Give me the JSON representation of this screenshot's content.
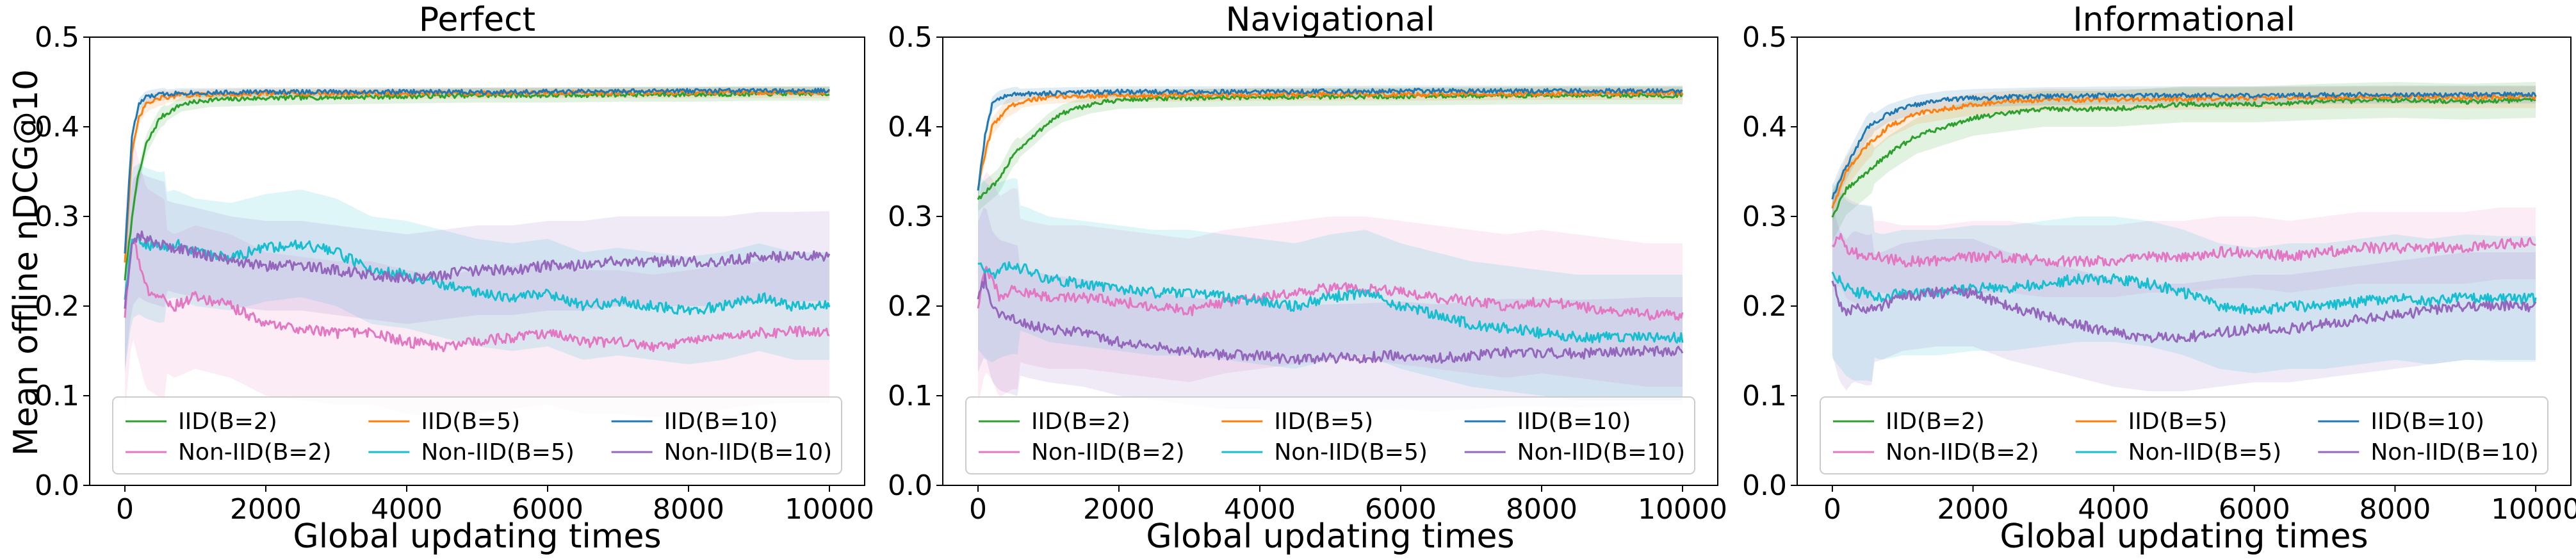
{
  "figure": {
    "ylabel": "Mean offline nDCG@10",
    "xlabel": "Global updating times"
  },
  "chart_data": [
    {
      "type": "line",
      "title": "Perfect",
      "xlabel": "Global updating times",
      "ylabel": "Mean offline nDCG@10",
      "xlim": [
        -500,
        10500
      ],
      "ylim": [
        0.0,
        0.5
      ],
      "xticks": [
        0,
        2000,
        4000,
        6000,
        8000,
        10000
      ],
      "yticks": [
        0.0,
        0.1,
        0.2,
        0.3,
        0.4,
        0.5
      ],
      "legend": {
        "position": "lower-center",
        "columns": 3
      },
      "series": [
        {
          "name": "IID(B=2)",
          "color": "#2ca02c",
          "x": [
            0,
            150,
            300,
            500,
            800,
            1200,
            2000,
            3000,
            4000,
            5000,
            6000,
            7000,
            8000,
            9000,
            10000
          ],
          "y": [
            0.23,
            0.33,
            0.38,
            0.41,
            0.425,
            0.43,
            0.432,
            0.433,
            0.434,
            0.435,
            0.435,
            0.436,
            0.436,
            0.437,
            0.437
          ],
          "band": 0.008
        },
        {
          "name": "IID(B=5)",
          "color": "#ff7f0e",
          "x": [
            0,
            100,
            200,
            300,
            500,
            800,
            1200,
            2000,
            4000,
            6000,
            8000,
            10000
          ],
          "y": [
            0.25,
            0.37,
            0.41,
            0.425,
            0.432,
            0.435,
            0.436,
            0.437,
            0.437,
            0.438,
            0.438,
            0.438
          ],
          "band": 0.006
        },
        {
          "name": "IID(B=10)",
          "color": "#1f77b4",
          "x": [
            0,
            100,
            200,
            300,
            500,
            800,
            1200,
            2000,
            4000,
            6000,
            8000,
            10000
          ],
          "y": [
            0.26,
            0.39,
            0.425,
            0.433,
            0.436,
            0.438,
            0.438,
            0.439,
            0.439,
            0.439,
            0.44,
            0.44
          ],
          "band": 0.005
        },
        {
          "name": "Non-IID(B=2)",
          "color": "#e377c2",
          "x": [
            0,
            100,
            200,
            300,
            500,
            700,
            1000,
            1500,
            2000,
            2500,
            3000,
            3500,
            4000,
            4500,
            5000,
            5500,
            6000,
            6500,
            7000,
            7500,
            8000,
            8500,
            9000,
            9500,
            10000
          ],
          "y": [
            0.19,
            0.28,
            0.25,
            0.22,
            0.21,
            0.2,
            0.21,
            0.2,
            0.18,
            0.175,
            0.17,
            0.17,
            0.16,
            0.155,
            0.16,
            0.165,
            0.17,
            0.16,
            0.16,
            0.155,
            0.16,
            0.165,
            0.17,
            0.172,
            0.172
          ],
          "band": 0.08
        },
        {
          "name": "Non-IID(B=5)",
          "color": "#17becf",
          "x": [
            0,
            100,
            200,
            300,
            500,
            700,
            1000,
            1500,
            2000,
            2500,
            3000,
            3500,
            4000,
            4500,
            5000,
            5500,
            6000,
            6500,
            7000,
            7500,
            8000,
            8500,
            9000,
            9500,
            10000
          ],
          "y": [
            0.21,
            0.27,
            0.275,
            0.27,
            0.265,
            0.27,
            0.26,
            0.255,
            0.265,
            0.27,
            0.26,
            0.24,
            0.235,
            0.225,
            0.215,
            0.21,
            0.215,
            0.2,
            0.205,
            0.2,
            0.195,
            0.2,
            0.21,
            0.2,
            0.2
          ],
          "band": 0.06
        },
        {
          "name": "Non-IID(B=10)",
          "color": "#9467bd",
          "x": [
            0,
            100,
            200,
            300,
            500,
            700,
            1000,
            1500,
            2000,
            2500,
            3000,
            3500,
            4000,
            4500,
            5000,
            5500,
            6000,
            6500,
            7000,
            7500,
            8000,
            8500,
            9000,
            9500,
            10000
          ],
          "y": [
            0.2,
            0.27,
            0.28,
            0.275,
            0.27,
            0.265,
            0.26,
            0.25,
            0.245,
            0.245,
            0.24,
            0.235,
            0.23,
            0.235,
            0.24,
            0.24,
            0.245,
            0.245,
            0.25,
            0.25,
            0.25,
            0.25,
            0.255,
            0.255,
            0.256
          ],
          "band": 0.05
        }
      ]
    },
    {
      "type": "line",
      "title": "Navigational",
      "xlabel": "Global updating times",
      "ylabel": "",
      "xlim": [
        -500,
        10500
      ],
      "ylim": [
        0.0,
        0.5
      ],
      "xticks": [
        0,
        2000,
        4000,
        6000,
        8000,
        10000
      ],
      "yticks": [
        0.0,
        0.1,
        0.2,
        0.3,
        0.4,
        0.5
      ],
      "legend": {
        "position": "lower-center",
        "columns": 3
      },
      "series": [
        {
          "name": "IID(B=2)",
          "color": "#2ca02c",
          "x": [
            0,
            150,
            300,
            500,
            800,
            1000,
            1200,
            1600,
            2000,
            3000,
            4000,
            6000,
            8000,
            10000
          ],
          "y": [
            0.32,
            0.33,
            0.34,
            0.37,
            0.39,
            0.405,
            0.415,
            0.425,
            0.43,
            0.432,
            0.433,
            0.434,
            0.435,
            0.435
          ],
          "band": 0.01
        },
        {
          "name": "IID(B=5)",
          "color": "#ff7f0e",
          "x": [
            0,
            100,
            200,
            400,
            600,
            900,
            1300,
            2000,
            3000,
            4000,
            6000,
            8000,
            10000
          ],
          "y": [
            0.33,
            0.37,
            0.4,
            0.42,
            0.428,
            0.432,
            0.434,
            0.435,
            0.435,
            0.436,
            0.436,
            0.437,
            0.437
          ],
          "band": 0.007
        },
        {
          "name": "IID(B=10)",
          "color": "#1f77b4",
          "x": [
            0,
            100,
            200,
            300,
            500,
            800,
            1200,
            2000,
            4000,
            6000,
            8000,
            10000
          ],
          "y": [
            0.33,
            0.39,
            0.425,
            0.432,
            0.436,
            0.437,
            0.438,
            0.439,
            0.439,
            0.44,
            0.44,
            0.44
          ],
          "band": 0.006
        },
        {
          "name": "Non-IID(B=2)",
          "color": "#e377c2",
          "x": [
            0,
            100,
            200,
            300,
            500,
            700,
            1000,
            1500,
            2000,
            2500,
            3000,
            3500,
            4000,
            4500,
            5000,
            5500,
            6000,
            6500,
            7000,
            7500,
            8000,
            8500,
            9000,
            9500,
            10000
          ],
          "y": [
            0.2,
            0.24,
            0.23,
            0.21,
            0.22,
            0.215,
            0.21,
            0.21,
            0.205,
            0.2,
            0.195,
            0.205,
            0.21,
            0.215,
            0.22,
            0.22,
            0.215,
            0.21,
            0.205,
            0.2,
            0.205,
            0.2,
            0.195,
            0.19,
            0.19
          ],
          "band": 0.08
        },
        {
          "name": "Non-IID(B=5)",
          "color": "#17becf",
          "x": [
            0,
            100,
            200,
            300,
            500,
            700,
            1000,
            1500,
            2000,
            2500,
            3000,
            3500,
            4000,
            4500,
            5000,
            5500,
            6000,
            6500,
            7000,
            7500,
            8000,
            8500,
            9000,
            9500,
            10000
          ],
          "y": [
            0.25,
            0.24,
            0.235,
            0.24,
            0.245,
            0.24,
            0.23,
            0.225,
            0.22,
            0.215,
            0.215,
            0.21,
            0.205,
            0.2,
            0.21,
            0.215,
            0.2,
            0.19,
            0.18,
            0.175,
            0.17,
            0.165,
            0.165,
            0.165,
            0.165
          ],
          "band": 0.07
        },
        {
          "name": "Non-IID(B=10)",
          "color": "#9467bd",
          "x": [
            0,
            100,
            200,
            300,
            500,
            700,
            1000,
            1500,
            2000,
            2500,
            3000,
            3500,
            4000,
            4500,
            5000,
            5500,
            6000,
            6500,
            7000,
            7500,
            8000,
            8500,
            9000,
            9500,
            10000
          ],
          "y": [
            0.21,
            0.23,
            0.2,
            0.19,
            0.185,
            0.18,
            0.175,
            0.17,
            0.16,
            0.155,
            0.15,
            0.145,
            0.145,
            0.14,
            0.142,
            0.143,
            0.145,
            0.142,
            0.145,
            0.148,
            0.148,
            0.147,
            0.148,
            0.15,
            0.15
          ],
          "band": 0.06
        }
      ]
    },
    {
      "type": "line",
      "title": "Informational",
      "xlabel": "Global updating times",
      "ylabel": "",
      "xlim": [
        -500,
        10500
      ],
      "ylim": [
        0.0,
        0.5
      ],
      "xticks": [
        0,
        2000,
        4000,
        6000,
        8000,
        10000
      ],
      "yticks": [
        0.0,
        0.1,
        0.2,
        0.3,
        0.4,
        0.5
      ],
      "legend": {
        "position": "lower-center",
        "columns": 3
      },
      "series": [
        {
          "name": "IID(B=2)",
          "color": "#2ca02c",
          "x": [
            0,
            200,
            500,
            800,
            1200,
            1600,
            2000,
            2500,
            3000,
            4000,
            5000,
            6000,
            7000,
            8000,
            9000,
            10000
          ],
          "y": [
            0.3,
            0.33,
            0.35,
            0.37,
            0.39,
            0.4,
            0.41,
            0.415,
            0.42,
            0.42,
            0.425,
            0.425,
            0.428,
            0.43,
            0.428,
            0.43
          ],
          "band": 0.02
        },
        {
          "name": "IID(B=5)",
          "color": "#ff7f0e",
          "x": [
            0,
            200,
            500,
            800,
            1200,
            1600,
            2000,
            2500,
            3000,
            4000,
            6000,
            8000,
            10000
          ],
          "y": [
            0.31,
            0.35,
            0.38,
            0.4,
            0.415,
            0.42,
            0.425,
            0.428,
            0.43,
            0.43,
            0.432,
            0.433,
            0.433
          ],
          "band": 0.012
        },
        {
          "name": "IID(B=10)",
          "color": "#1f77b4",
          "x": [
            0,
            100,
            300,
            500,
            800,
            1200,
            1600,
            2000,
            3000,
            4000,
            6000,
            8000,
            10000
          ],
          "y": [
            0.32,
            0.34,
            0.37,
            0.4,
            0.415,
            0.425,
            0.43,
            0.432,
            0.434,
            0.435,
            0.435,
            0.436,
            0.436
          ],
          "band": 0.01
        },
        {
          "name": "Non-IID(B=2)",
          "color": "#e377c2",
          "x": [
            0,
            100,
            200,
            300,
            500,
            700,
            1000,
            1500,
            2000,
            2500,
            3000,
            3500,
            4000,
            4500,
            5000,
            5500,
            6000,
            6500,
            7000,
            7500,
            8000,
            8500,
            9000,
            9500,
            10000
          ],
          "y": [
            0.27,
            0.28,
            0.265,
            0.26,
            0.255,
            0.255,
            0.25,
            0.25,
            0.255,
            0.255,
            0.25,
            0.25,
            0.25,
            0.255,
            0.255,
            0.26,
            0.26,
            0.255,
            0.26,
            0.265,
            0.265,
            0.265,
            0.265,
            0.27,
            0.27
          ],
          "band": 0.04
        },
        {
          "name": "Non-IID(B=5)",
          "color": "#17becf",
          "x": [
            0,
            100,
            200,
            300,
            500,
            700,
            1000,
            1500,
            2000,
            2500,
            3000,
            3500,
            4000,
            4500,
            5000,
            5500,
            6000,
            6500,
            7000,
            7500,
            8000,
            8500,
            9000,
            9500,
            10000
          ],
          "y": [
            0.24,
            0.23,
            0.22,
            0.215,
            0.215,
            0.21,
            0.215,
            0.215,
            0.22,
            0.22,
            0.225,
            0.23,
            0.23,
            0.225,
            0.215,
            0.2,
            0.195,
            0.2,
            0.2,
            0.205,
            0.21,
            0.205,
            0.21,
            0.208,
            0.208
          ],
          "band": 0.07
        },
        {
          "name": "Non-IID(B=10)",
          "color": "#9467bd",
          "x": [
            0,
            100,
            200,
            300,
            500,
            700,
            1000,
            1500,
            2000,
            2500,
            3000,
            3500,
            4000,
            4500,
            5000,
            5500,
            6000,
            6500,
            7000,
            7500,
            8000,
            8500,
            9000,
            9500,
            10000
          ],
          "y": [
            0.23,
            0.2,
            0.19,
            0.2,
            0.195,
            0.2,
            0.21,
            0.215,
            0.215,
            0.2,
            0.19,
            0.18,
            0.17,
            0.165,
            0.165,
            0.17,
            0.175,
            0.175,
            0.18,
            0.185,
            0.19,
            0.195,
            0.2,
            0.2,
            0.2
          ],
          "band": 0.06
        }
      ]
    }
  ]
}
